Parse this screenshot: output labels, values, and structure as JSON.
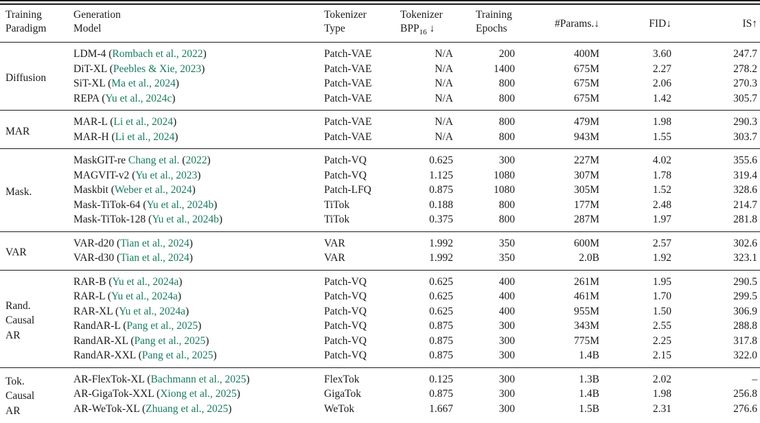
{
  "colors": {
    "citation": "#187a60",
    "text": "#1a1a1a",
    "rule": "#1a1a1a",
    "background": "#ffffff"
  },
  "table": {
    "header": {
      "paradigm": [
        "Training",
        "Paradigm"
      ],
      "model": [
        "Generation",
        "Model"
      ],
      "tokenizer_type": [
        "Tokenizer",
        "Type"
      ],
      "bpp": {
        "line1": "Tokenizer",
        "base": "BPP",
        "sub": "16",
        "suffix": " ↓"
      },
      "epochs": [
        "Training",
        "Epochs"
      ],
      "params": "#Params.↓",
      "fid": "FID↓",
      "is": "IS↑"
    },
    "groups": [
      {
        "id": "diffusion",
        "paradigm": [
          "Diffusion"
        ],
        "rows": [
          {
            "model": "LDM-4",
            "cite": [
              {
                "t": "(",
                "link": false
              },
              {
                "t": "Rombach et al., 2022",
                "link": true
              },
              {
                "t": ")",
                "link": false
              }
            ],
            "tokenizer": "Patch-VAE",
            "bpp": "N/A",
            "epochs": "200",
            "params": "400M",
            "fid": "3.60",
            "is": "247.7"
          },
          {
            "model": "DiT-XL",
            "cite": [
              {
                "t": "(",
                "link": false
              },
              {
                "t": "Peebles & Xie, 2023",
                "link": true
              },
              {
                "t": ")",
                "link": false
              }
            ],
            "tokenizer": "Patch-VAE",
            "bpp": "N/A",
            "epochs": "1400",
            "params": "675M",
            "fid": "2.27",
            "is": "278.2"
          },
          {
            "model": "SiT-XL",
            "cite": [
              {
                "t": "(",
                "link": false
              },
              {
                "t": "Ma et al., 2024",
                "link": true
              },
              {
                "t": ")",
                "link": false
              }
            ],
            "tokenizer": "Patch-VAE",
            "bpp": "N/A",
            "epochs": "800",
            "params": "675M",
            "fid": "2.06",
            "is": "270.3"
          },
          {
            "model": "REPA",
            "cite": [
              {
                "t": "(",
                "link": false
              },
              {
                "t": "Yu et al., 2024c",
                "link": true
              },
              {
                "t": ")",
                "link": false
              }
            ],
            "tokenizer": "Patch-VAE",
            "bpp": "N/A",
            "epochs": "800",
            "params": "675M",
            "fid": "1.42",
            "is": "305.7"
          }
        ]
      },
      {
        "id": "mar",
        "paradigm": [
          "MAR"
        ],
        "rows": [
          {
            "model": "MAR-L",
            "cite": [
              {
                "t": "(",
                "link": false
              },
              {
                "t": "Li et al., 2024",
                "link": true
              },
              {
                "t": ")",
                "link": false
              }
            ],
            "tokenizer": "Patch-VAE",
            "bpp": "N/A",
            "epochs": "800",
            "params": "479M",
            "fid": "1.98",
            "is": "290.3"
          },
          {
            "model": "MAR-H",
            "cite": [
              {
                "t": "(",
                "link": false
              },
              {
                "t": "Li et al., 2024",
                "link": true
              },
              {
                "t": ")",
                "link": false
              }
            ],
            "tokenizer": "Patch-VAE",
            "bpp": "N/A",
            "epochs": "800",
            "params": "943M",
            "fid": "1.55",
            "is": "303.7"
          }
        ]
      },
      {
        "id": "mask",
        "paradigm": [
          "Mask."
        ],
        "rows": [
          {
            "model": "MaskGIT-re",
            "cite": [
              {
                "t": "Chang et al.",
                "link": true
              },
              {
                "t": " (",
                "link": false
              },
              {
                "t": "2022",
                "link": true
              },
              {
                "t": ")",
                "link": false
              }
            ],
            "tokenizer": "Patch-VQ",
            "bpp": "0.625",
            "epochs": "300",
            "params": "227M",
            "fid": "4.02",
            "is": "355.6"
          },
          {
            "model": "MAGVIT-v2",
            "cite": [
              {
                "t": "(",
                "link": false
              },
              {
                "t": "Yu et al., 2023",
                "link": true
              },
              {
                "t": ")",
                "link": false
              }
            ],
            "tokenizer": "Patch-VQ",
            "bpp": "1.125",
            "epochs": "1080",
            "params": "307M",
            "fid": "1.78",
            "is": "319.4"
          },
          {
            "model": "Maskbit",
            "cite": [
              {
                "t": "(",
                "link": false
              },
              {
                "t": "Weber et al., 2024",
                "link": true
              },
              {
                "t": ")",
                "link": false
              }
            ],
            "tokenizer": "Patch-LFQ",
            "bpp": "0.875",
            "epochs": "1080",
            "params": "305M",
            "fid": "1.52",
            "is": "328.6"
          },
          {
            "model": "Mask-TiTok-64",
            "cite": [
              {
                "t": "(",
                "link": false
              },
              {
                "t": "Yu et al., 2024b",
                "link": true
              },
              {
                "t": ")",
                "link": false
              }
            ],
            "tokenizer": "TiTok",
            "bpp": "0.188",
            "epochs": "800",
            "params": "177M",
            "fid": "2.48",
            "is": "214.7"
          },
          {
            "model": "Mask-TiTok-128",
            "cite": [
              {
                "t": "(",
                "link": false
              },
              {
                "t": "Yu et al., 2024b",
                "link": true
              },
              {
                "t": ")",
                "link": false
              }
            ],
            "tokenizer": "TiTok",
            "bpp": "0.375",
            "epochs": "800",
            "params": "287M",
            "fid": "1.97",
            "is": "281.8"
          }
        ]
      },
      {
        "id": "var",
        "paradigm": [
          "VAR"
        ],
        "rows": [
          {
            "model": "VAR-d20",
            "cite": [
              {
                "t": "(",
                "link": false
              },
              {
                "t": "Tian et al., 2024",
                "link": true
              },
              {
                "t": ")",
                "link": false
              }
            ],
            "tokenizer": "VAR",
            "bpp": "1.992",
            "epochs": "350",
            "params": "600M",
            "fid": "2.57",
            "is": "302.6"
          },
          {
            "model": "VAR-d30",
            "cite": [
              {
                "t": "(",
                "link": false
              },
              {
                "t": "Tian et al., 2024",
                "link": true
              },
              {
                "t": ")",
                "link": false
              }
            ],
            "tokenizer": "VAR",
            "bpp": "1.992",
            "epochs": "350",
            "params": "2.0B",
            "fid": "1.92",
            "is": "323.1"
          }
        ]
      },
      {
        "id": "rand-causal-ar",
        "paradigm": [
          "Rand.",
          "Causal",
          "AR"
        ],
        "rows": [
          {
            "model": "RAR-B",
            "cite": [
              {
                "t": "(",
                "link": false
              },
              {
                "t": "Yu et al., 2024a",
                "link": true
              },
              {
                "t": ")",
                "link": false
              }
            ],
            "tokenizer": "Patch-VQ",
            "bpp": "0.625",
            "epochs": "400",
            "params": "261M",
            "fid": "1.95",
            "is": "290.5"
          },
          {
            "model": "RAR-L",
            "cite": [
              {
                "t": "(",
                "link": false
              },
              {
                "t": "Yu et al., 2024a",
                "link": true
              },
              {
                "t": ")",
                "link": false
              }
            ],
            "tokenizer": "Patch-VQ",
            "bpp": "0.625",
            "epochs": "400",
            "params": "461M",
            "fid": "1.70",
            "is": "299.5"
          },
          {
            "model": "RAR-XL",
            "cite": [
              {
                "t": "(",
                "link": false
              },
              {
                "t": "Yu et al., 2024a",
                "link": true
              },
              {
                "t": ")",
                "link": false
              }
            ],
            "tokenizer": "Patch-VQ",
            "bpp": "0.625",
            "epochs": "400",
            "params": "955M",
            "fid": "1.50",
            "is": "306.9"
          },
          {
            "model": "RandAR-L",
            "cite": [
              {
                "t": "(",
                "link": false
              },
              {
                "t": "Pang et al., 2025",
                "link": true
              },
              {
                "t": ")",
                "link": false
              }
            ],
            "tokenizer": "Patch-VQ",
            "bpp": "0.875",
            "epochs": "300",
            "params": "343M",
            "fid": "2.55",
            "is": "288.8"
          },
          {
            "model": "RandAR-XL",
            "cite": [
              {
                "t": "(",
                "link": false
              },
              {
                "t": "Pang et al., 2025",
                "link": true
              },
              {
                "t": ")",
                "link": false
              }
            ],
            "tokenizer": "Patch-VQ",
            "bpp": "0.875",
            "epochs": "300",
            "params": "775M",
            "fid": "2.25",
            "is": "317.8"
          },
          {
            "model": "RandAR-XXL",
            "cite": [
              {
                "t": "(",
                "link": false
              },
              {
                "t": "Pang et al., 2025",
                "link": true
              },
              {
                "t": ")",
                "link": false
              }
            ],
            "tokenizer": "Patch-VQ",
            "bpp": "0.875",
            "epochs": "300",
            "params": "1.4B",
            "fid": "2.15",
            "is": "322.0"
          }
        ]
      },
      {
        "id": "tok-causal-ar",
        "paradigm": [
          "Tok.",
          "Causal",
          "AR"
        ],
        "rows": [
          {
            "model": "AR-FlexTok-XL",
            "cite": [
              {
                "t": "(",
                "link": false
              },
              {
                "t": "Bachmann et al., 2025",
                "link": true
              },
              {
                "t": ")",
                "link": false
              }
            ],
            "tokenizer": "FlexTok",
            "bpp": "0.125",
            "epochs": "300",
            "params": "1.3B",
            "fid": "2.02",
            "is": "–"
          },
          {
            "model": "AR-GigaTok-XXL",
            "cite": [
              {
                "t": "(",
                "link": false
              },
              {
                "t": "Xiong et al., 2025",
                "link": true
              },
              {
                "t": ")",
                "link": false
              }
            ],
            "tokenizer": "GigaTok",
            "bpp": "0.875",
            "epochs": "300",
            "params": "1.4B",
            "fid": "1.98",
            "is": "256.8"
          },
          {
            "model": "AR-WeTok-XL",
            "cite": [
              {
                "t": "(",
                "link": false
              },
              {
                "t": "Zhuang et al., 2025",
                "link": true
              },
              {
                "t": ")",
                "link": false
              }
            ],
            "tokenizer": "WeTok",
            "bpp": "1.667",
            "epochs": "300",
            "params": "1.5B",
            "fid": "2.31",
            "is": "276.6"
          }
        ]
      }
    ]
  }
}
